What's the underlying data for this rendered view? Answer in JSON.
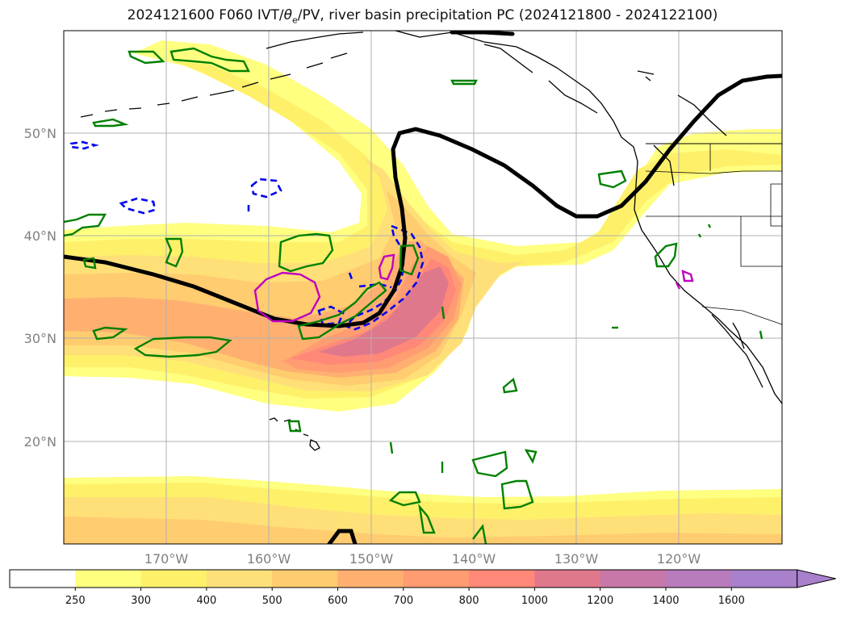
{
  "title": {
    "prefix": "2024121600 F060 IVT/",
    "theta": "θ",
    "theta_sub": "e",
    "suffix": "/PV, river basin precipitation PC (2024121800 - 2024122100)"
  },
  "map": {
    "lat_labels": [
      "50°N",
      "40°N",
      "30°N",
      "20°N"
    ],
    "lon_labels": [
      "170°W",
      "160°W",
      "150°W",
      "140°W",
      "130°W",
      "120°W"
    ]
  },
  "colorbar": {
    "ticks": [
      "250",
      "300",
      "400",
      "500",
      "600",
      "700",
      "800",
      "1000",
      "1200",
      "1400",
      "1600"
    ],
    "colors": [
      "#ffffff",
      "#ffff80",
      "#fff06a",
      "#ffe078",
      "#ffcc70",
      "#ffb070",
      "#ff9c72",
      "#ff8878",
      "#e0788c",
      "#c878a8",
      "#b87cbc",
      "#a880cc"
    ],
    "extend": "max"
  },
  "colors": {
    "pv_contour": "#000000",
    "theta_e_dashed": "#0000ee",
    "precip_green": "#008000",
    "precip_magenta": "#c000c0",
    "grid": "#b0b0b0",
    "coastline": "#000000"
  }
}
